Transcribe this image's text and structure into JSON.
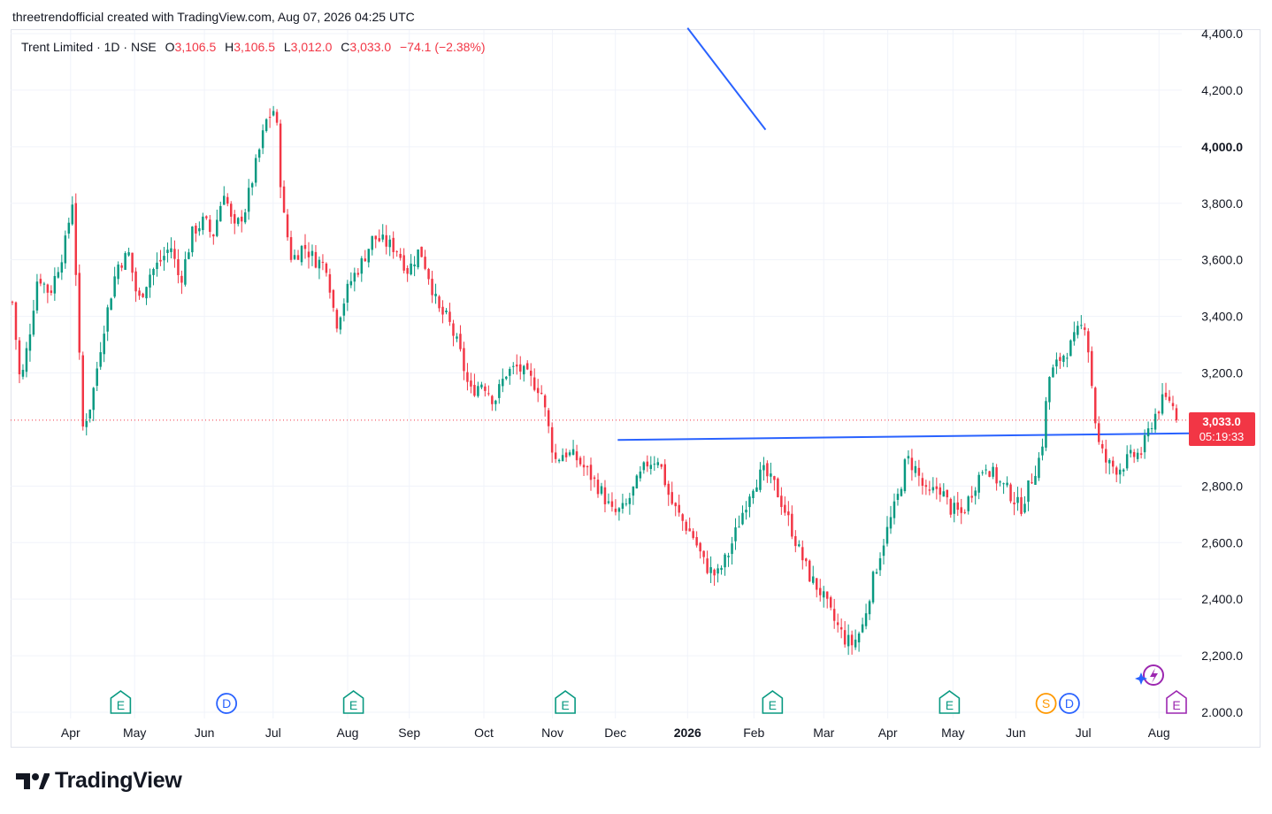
{
  "caption": "threetrendofficial created with TradingView.com, Aug 07, 2026 04:25 UTC",
  "legend": {
    "symbol": "Trent Limited · 1D · NSE",
    "open_label": "O",
    "open": "3,106.5",
    "high_label": "H",
    "high": "3,106.5",
    "low_label": "L",
    "low": "3,012.0",
    "close_label": "C",
    "close": "3,033.0",
    "change": "−74.1 (−2.38%)"
  },
  "price_tag": {
    "price": "3,033.0",
    "countdown": "05:19:33"
  },
  "brand": "TradingView",
  "colors": {
    "up": "#089981",
    "down": "#f23645",
    "trendline": "#2962ff",
    "grid": "#f0f3fa",
    "tag": "#f23645"
  },
  "chart_data": {
    "type": "candlestick",
    "title": "Trent Limited · 1D · NSE",
    "ylim": [
      2000,
      4400
    ],
    "y_ticks": [
      "4,400.0",
      "4,200.0",
      "4,000.0",
      "3,800.0",
      "3,600.0",
      "3,400.0",
      "3,200.0",
      "2,800.0",
      "2,600.0",
      "2,400.0",
      "2,200.0",
      "2.000.0"
    ],
    "y_tick_values": [
      4400,
      4200,
      4000,
      3800,
      3600,
      3400,
      3200,
      2800,
      2600,
      2400,
      2200,
      2000
    ],
    "x_ticks": [
      {
        "label": "Apr",
        "t": 0.05
      },
      {
        "label": "May",
        "t": 0.105
      },
      {
        "label": "Jun",
        "t": 0.165
      },
      {
        "label": "Jul",
        "t": 0.224
      },
      {
        "label": "Aug",
        "t": 0.288
      },
      {
        "label": "Sep",
        "t": 0.341
      },
      {
        "label": "Oct",
        "t": 0.405
      },
      {
        "label": "Nov",
        "t": 0.464
      },
      {
        "label": "Dec",
        "t": 0.518
      },
      {
        "label": "2026",
        "t": 0.58,
        "bold": true
      },
      {
        "label": "Feb",
        "t": 0.637
      },
      {
        "label": "Mar",
        "t": 0.697
      },
      {
        "label": "Apr",
        "t": 0.752
      },
      {
        "label": "May",
        "t": 0.808
      },
      {
        "label": "Jun",
        "t": 0.862
      },
      {
        "label": "Jul",
        "t": 0.92
      },
      {
        "label": "Aug",
        "t": 0.985
      }
    ],
    "last_price": 3033.0,
    "price_path": [
      [
        0.0,
        3450
      ],
      [
        0.007,
        3150
      ],
      [
        0.015,
        3350
      ],
      [
        0.022,
        3550
      ],
      [
        0.032,
        3480
      ],
      [
        0.045,
        3650
      ],
      [
        0.052,
        3820
      ],
      [
        0.06,
        3000
      ],
      [
        0.068,
        3100
      ],
      [
        0.078,
        3350
      ],
      [
        0.09,
        3580
      ],
      [
        0.1,
        3620
      ],
      [
        0.108,
        3450
      ],
      [
        0.118,
        3550
      ],
      [
        0.128,
        3600
      ],
      [
        0.136,
        3650
      ],
      [
        0.144,
        3520
      ],
      [
        0.155,
        3700
      ],
      [
        0.165,
        3740
      ],
      [
        0.172,
        3680
      ],
      [
        0.182,
        3850
      ],
      [
        0.19,
        3700
      ],
      [
        0.2,
        3780
      ],
      [
        0.21,
        3950
      ],
      [
        0.218,
        4090
      ],
      [
        0.226,
        4140
      ],
      [
        0.232,
        3780
      ],
      [
        0.24,
        3600
      ],
      [
        0.25,
        3650
      ],
      [
        0.26,
        3600
      ],
      [
        0.27,
        3580
      ],
      [
        0.278,
        3370
      ],
      [
        0.29,
        3520
      ],
      [
        0.3,
        3590
      ],
      [
        0.31,
        3680
      ],
      [
        0.32,
        3660
      ],
      [
        0.33,
        3640
      ],
      [
        0.34,
        3560
      ],
      [
        0.35,
        3640
      ],
      [
        0.358,
        3540
      ],
      [
        0.366,
        3420
      ],
      [
        0.374,
        3390
      ],
      [
        0.384,
        3280
      ],
      [
        0.393,
        3130
      ],
      [
        0.404,
        3170
      ],
      [
        0.414,
        3100
      ],
      [
        0.424,
        3200
      ],
      [
        0.434,
        3220
      ],
      [
        0.444,
        3180
      ],
      [
        0.454,
        3140
      ],
      [
        0.466,
        2890
      ],
      [
        0.474,
        2920
      ],
      [
        0.484,
        2900
      ],
      [
        0.496,
        2840
      ],
      [
        0.506,
        2780
      ],
      [
        0.516,
        2700
      ],
      [
        0.526,
        2720
      ],
      [
        0.535,
        2800
      ],
      [
        0.545,
        2880
      ],
      [
        0.555,
        2900
      ],
      [
        0.565,
        2750
      ],
      [
        0.575,
        2680
      ],
      [
        0.585,
        2620
      ],
      [
        0.595,
        2520
      ],
      [
        0.605,
        2480
      ],
      [
        0.615,
        2560
      ],
      [
        0.625,
        2680
      ],
      [
        0.635,
        2800
      ],
      [
        0.645,
        2850
      ],
      [
        0.655,
        2800
      ],
      [
        0.665,
        2700
      ],
      [
        0.675,
        2580
      ],
      [
        0.685,
        2480
      ],
      [
        0.695,
        2420
      ],
      [
        0.705,
        2330
      ],
      [
        0.715,
        2260
      ],
      [
        0.722,
        2240
      ],
      [
        0.73,
        2300
      ],
      [
        0.738,
        2450
      ],
      [
        0.748,
        2600
      ],
      [
        0.756,
        2700
      ],
      [
        0.762,
        2780
      ],
      [
        0.768,
        2900
      ],
      [
        0.776,
        2860
      ],
      [
        0.786,
        2760
      ],
      [
        0.796,
        2800
      ],
      [
        0.806,
        2720
      ],
      [
        0.816,
        2700
      ],
      [
        0.826,
        2800
      ],
      [
        0.836,
        2880
      ],
      [
        0.846,
        2820
      ],
      [
        0.856,
        2780
      ],
      [
        0.866,
        2720
      ],
      [
        0.876,
        2830
      ],
      [
        0.884,
        2920
      ],
      [
        0.89,
        3180
      ],
      [
        0.9,
        3250
      ],
      [
        0.91,
        3300
      ],
      [
        0.916,
        3350
      ],
      [
        0.922,
        3380
      ],
      [
        0.932,
        2960
      ],
      [
        0.94,
        2880
      ],
      [
        0.95,
        2860
      ],
      [
        0.96,
        2900
      ],
      [
        0.97,
        2920
      ],
      [
        0.98,
        3040
      ],
      [
        0.988,
        3100
      ],
      [
        0.995,
        3110
      ],
      [
        1.0,
        3033
      ]
    ],
    "trendlines": [
      {
        "x": [
          0.58,
          0.647
        ],
        "y": [
          4420,
          4060
        ]
      },
      {
        "x": [
          0.52,
          1.02
        ],
        "y": [
          2963,
          2987
        ]
      }
    ],
    "event_markers": [
      {
        "label": "E",
        "t": 0.093,
        "kind": "earnings"
      },
      {
        "label": "D",
        "t": 0.184,
        "kind": "dividend"
      },
      {
        "label": "E",
        "t": 0.293,
        "kind": "earnings"
      },
      {
        "label": "E",
        "t": 0.475,
        "kind": "earnings"
      },
      {
        "label": "E",
        "t": 0.653,
        "kind": "earnings"
      },
      {
        "label": "E",
        "t": 0.805,
        "kind": "earnings"
      },
      {
        "label": "S",
        "t": 0.888,
        "kind": "split"
      },
      {
        "label": "D",
        "t": 0.908,
        "kind": "dividend"
      },
      {
        "label": "E",
        "t": 1.0,
        "kind": "earnings-upcoming"
      }
    ]
  }
}
